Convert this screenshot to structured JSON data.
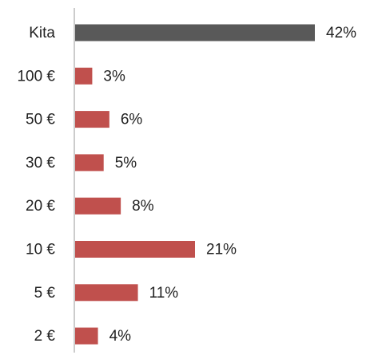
{
  "chart_data": {
    "type": "bar",
    "orientation": "horizontal",
    "categories": [
      "Kita",
      "100 €",
      "50 €",
      "30 €",
      "20 €",
      "10 €",
      "5 €",
      "2 €"
    ],
    "values": [
      42,
      3,
      6,
      5,
      8,
      21,
      11,
      4
    ],
    "value_labels": [
      "42%",
      "3%",
      "6%",
      "5%",
      "8%",
      "21%",
      "11%",
      "4%"
    ],
    "colors": [
      "#595959",
      "#c0504d",
      "#c0504d",
      "#c0504d",
      "#c0504d",
      "#c0504d",
      "#c0504d",
      "#c0504d"
    ]
  }
}
